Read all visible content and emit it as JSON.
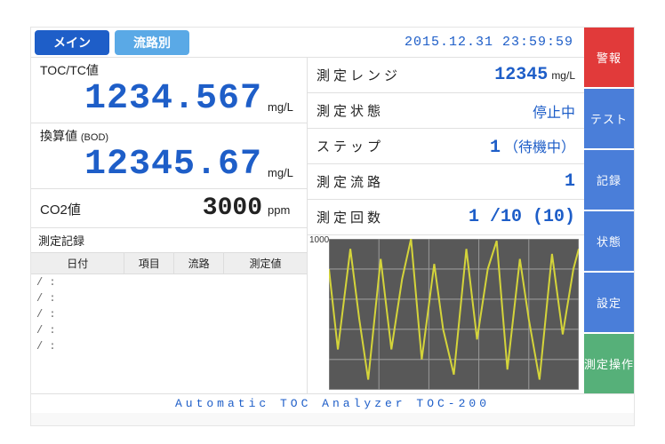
{
  "tabs": {
    "main": "メイン",
    "sub": "流路別"
  },
  "datetime": "2015.12.31 23:59:59",
  "readouts": {
    "toc": {
      "label": "TOC/TC値",
      "value": "1234.567",
      "unit": "mg/L"
    },
    "conv": {
      "label": "換算値",
      "labelSub": "(BOD)",
      "value": "12345.67",
      "unit": "mg/L"
    },
    "co2": {
      "label": "CO2値",
      "value": "3000",
      "unit": "ppm"
    }
  },
  "log": {
    "title": "測定記録",
    "headers": {
      "date": "日付",
      "item": "項目",
      "line": "流路",
      "value": "測定値"
    },
    "placeholder": "/    :"
  },
  "info": {
    "range": {
      "k": "測定レンジ",
      "v": "12345",
      "u": "mg/L"
    },
    "state": {
      "k": "測定状態",
      "v": "停止中"
    },
    "step": {
      "k": "ステップ",
      "v": "1",
      "note": "（待機中）"
    },
    "flow": {
      "k": "測定流路",
      "v": "1"
    },
    "count": {
      "k": "測定回数",
      "v": "1 /10 (10)"
    }
  },
  "chart": {
    "ymax_label": "1000",
    "background": "#585858",
    "grid_color": "#999999",
    "trace_color": "#d4d43a",
    "xrange": [
      0,
      280
    ],
    "yrange": [
      0,
      150
    ],
    "grid_x": [
      0,
      56,
      112,
      168,
      224,
      280
    ],
    "grid_y": [
      0,
      30,
      60,
      90,
      120,
      150
    ],
    "points": [
      [
        0,
        120
      ],
      [
        10,
        40
      ],
      [
        24,
        140
      ],
      [
        34,
        70
      ],
      [
        44,
        10
      ],
      [
        58,
        130
      ],
      [
        70,
        40
      ],
      [
        82,
        110
      ],
      [
        92,
        150
      ],
      [
        104,
        30
      ],
      [
        118,
        125
      ],
      [
        128,
        60
      ],
      [
        140,
        15
      ],
      [
        154,
        140
      ],
      [
        166,
        50
      ],
      [
        178,
        120
      ],
      [
        188,
        148
      ],
      [
        200,
        20
      ],
      [
        214,
        130
      ],
      [
        224,
        70
      ],
      [
        236,
        10
      ],
      [
        250,
        135
      ],
      [
        262,
        55
      ],
      [
        274,
        120
      ],
      [
        280,
        140
      ]
    ]
  },
  "side": {
    "alarm": "警報",
    "test": "テスト",
    "record": "記録",
    "status": "状態",
    "setting": "設定",
    "measure": "測定操作"
  },
  "footer": "Automatic TOC Analyzer TOC-200",
  "colors": {
    "brand_blue": "#1e5ec8",
    "tab_sub_blue": "#5aa9e6",
    "btn_red": "#e13a3a",
    "btn_blue": "#4a7ed9",
    "btn_green": "#56b079"
  }
}
